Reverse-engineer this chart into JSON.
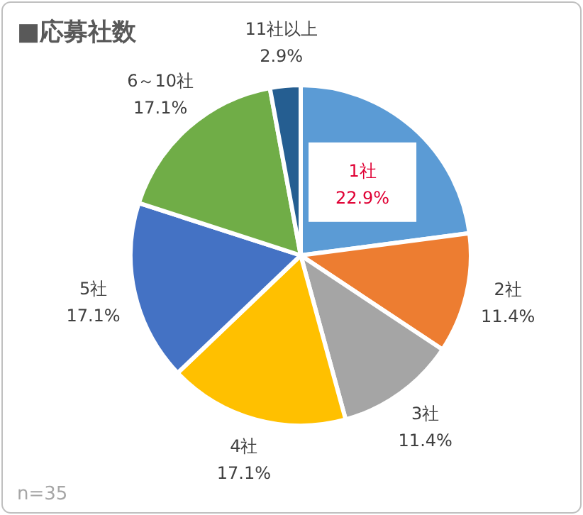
{
  "chart_data": {
    "type": "pie",
    "title": "■応募社数",
    "categories": [
      "1社",
      "2社",
      "3社",
      "4社",
      "5社",
      "6～10社",
      "11社以上"
    ],
    "values": [
      22.9,
      11.4,
      11.4,
      17.1,
      17.1,
      17.1,
      2.9
    ],
    "colors": [
      "#5b9bd5",
      "#ed7d31",
      "#a5a5a5",
      "#ffc000",
      "#4472c4",
      "#70ad47",
      "#255e91"
    ],
    "value_labels": [
      "22.9%",
      "11.4%",
      "11.4%",
      "17.1%",
      "17.1%",
      "17.1%",
      "2.9%"
    ],
    "annotations": [
      "n=35"
    ]
  }
}
